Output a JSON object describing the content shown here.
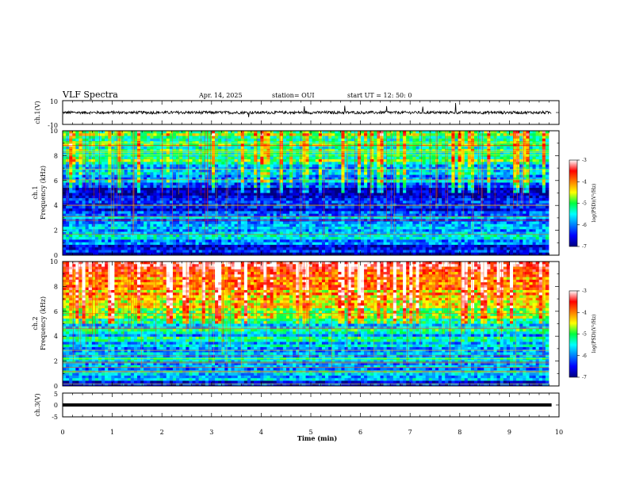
{
  "header": {
    "title": "VLF Spectra",
    "date": "Apr. 14, 2025",
    "station": "station= OUI",
    "start": "start  UT  =  12: 50: 0"
  },
  "chart_data": [
    {
      "type": "line",
      "panel": "ch1-waveform",
      "ylabel": "ch.1(V)",
      "ylim": [
        -10,
        10
      ],
      "yticks": [
        "10",
        "-10"
      ],
      "xlim": [
        0,
        10
      ],
      "trace": {
        "baseline": 0,
        "typical_amplitude": 1.2,
        "end_min": 9.85
      }
    },
    {
      "type": "heatmap",
      "panel": "ch1-spectrogram",
      "ylabel": [
        "ch.1",
        "Frequency (kHz)"
      ],
      "ylim": [
        0,
        10
      ],
      "yticks": [
        "0",
        "2",
        "4",
        "6",
        "8",
        "10"
      ],
      "xlim": [
        0,
        9.85
      ],
      "colorbar": {
        "label": "log(PSD)(V²/Hz)",
        "range": [
          -7,
          -3
        ],
        "ticks": [
          "-3",
          "-4",
          "-5",
          "-6",
          "-7"
        ]
      },
      "profile": [
        {
          "f": 0.0,
          "v": -6.8
        },
        {
          "f": 0.5,
          "v": -6.6
        },
        {
          "f": 1.0,
          "v": -6.0
        },
        {
          "f": 1.5,
          "v": -5.6
        },
        {
          "f": 2.0,
          "v": -6.2
        },
        {
          "f": 2.5,
          "v": -6.0
        },
        {
          "f": 3.0,
          "v": -5.9
        },
        {
          "f": 3.5,
          "v": -6.3
        },
        {
          "f": 4.0,
          "v": -6.5
        },
        {
          "f": 4.5,
          "v": -6.7
        },
        {
          "f": 5.0,
          "v": -6.8
        },
        {
          "f": 5.5,
          "v": -6.4
        },
        {
          "f": 6.0,
          "v": -5.9
        },
        {
          "f": 7.0,
          "v": -5.5
        },
        {
          "f": 8.0,
          "v": -5.2
        },
        {
          "f": 9.0,
          "v": -5.0
        },
        {
          "f": 10.0,
          "v": -4.9
        }
      ]
    },
    {
      "type": "heatmap",
      "panel": "ch2-spectrogram",
      "ylabel": [
        "ch.2",
        "Frequency (kHz)"
      ],
      "ylim": [
        0,
        10
      ],
      "yticks": [
        "0",
        "2",
        "4",
        "6",
        "8",
        "10"
      ],
      "xlim": [
        0,
        9.85
      ],
      "colorbar": {
        "label": "log(PSD)(V²/Hz)",
        "range": [
          -7,
          -3
        ],
        "ticks": [
          "-3",
          "-4",
          "-5",
          "-6",
          "-7"
        ]
      },
      "profile": [
        {
          "f": 0.0,
          "v": -6.5
        },
        {
          "f": 1.0,
          "v": -5.6
        },
        {
          "f": 2.0,
          "v": -5.8
        },
        {
          "f": 3.0,
          "v": -5.7
        },
        {
          "f": 4.0,
          "v": -5.6
        },
        {
          "f": 5.0,
          "v": -5.3
        },
        {
          "f": 6.0,
          "v": -4.9
        },
        {
          "f": 7.0,
          "v": -4.5
        },
        {
          "f": 8.0,
          "v": -4.1
        },
        {
          "f": 9.0,
          "v": -3.8
        },
        {
          "f": 10.0,
          "v": -3.6
        }
      ]
    },
    {
      "type": "line",
      "panel": "ch3-waveform",
      "ylabel": "ch.3(V)",
      "ylim": [
        -5,
        5
      ],
      "yticks": [
        "5",
        "0",
        "-5"
      ],
      "xlim": [
        0,
        10
      ],
      "trace": {
        "level": 0,
        "end_min": 9.85
      }
    }
  ],
  "xaxis": {
    "label": "Time (min)",
    "ticks": [
      "0",
      "1",
      "2",
      "3",
      "4",
      "5",
      "6",
      "7",
      "8",
      "9",
      "10"
    ]
  }
}
